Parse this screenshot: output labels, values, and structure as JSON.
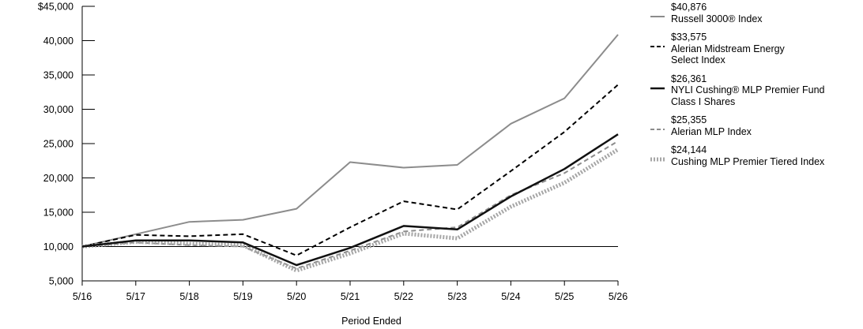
{
  "chart_data": {
    "type": "line",
    "xlabel": "Period Ended",
    "ylabel": "",
    "ylim": [
      5000,
      45000
    ],
    "y_ticks": [
      5000,
      10000,
      15000,
      20000,
      25000,
      30000,
      35000,
      40000,
      45000
    ],
    "y_tick_labels": [
      "5,000",
      "10,000",
      "15,000",
      "20,000",
      "25,000",
      "30,000",
      "35,000",
      "40,000",
      "$45,000"
    ],
    "categories": [
      "5/16",
      "5/17",
      "5/18",
      "5/19",
      "5/20",
      "5/21",
      "5/22",
      "5/23",
      "5/24",
      "5/25",
      "5/26"
    ],
    "reference_line": 10000,
    "legend_position": "right",
    "series": [
      {
        "name": "Russell 3000® Index",
        "final_label": "$40,876",
        "color": "#8c8c8c",
        "style": "solid-thin",
        "values": [
          10000,
          11800,
          13600,
          13900,
          15500,
          22300,
          21500,
          21900,
          27900,
          31600,
          40876
        ]
      },
      {
        "name": "Alerian Midstream Energy\nSelect Index",
        "final_label": "$33,575",
        "color": "#000000",
        "style": "dashed",
        "values": [
          10000,
          11700,
          11500,
          11800,
          8700,
          12800,
          16600,
          15400,
          21000,
          26700,
          33575
        ]
      },
      {
        "name": "NYLI Cushing® MLP Premier Fund\nClass I Shares",
        "final_label": "$26,361",
        "color": "#111111",
        "style": "solid-thick",
        "values": [
          10000,
          10900,
          10900,
          10600,
          7300,
          9800,
          13000,
          12500,
          17300,
          21300,
          26361
        ]
      },
      {
        "name": "Alerian MLP Index",
        "final_label": "$25,355",
        "color": "#8c8c8c",
        "style": "dashed",
        "values": [
          10000,
          10600,
          10200,
          10000,
          6800,
          9400,
          12200,
          12800,
          17500,
          20700,
          25355
        ]
      },
      {
        "name": "Cushing MLP Premier Tiered Index",
        "final_label": "$24,144",
        "color": "#a6a6a6",
        "style": "dotted-thick",
        "values": [
          10000,
          10700,
          10400,
          10200,
          6500,
          9000,
          11900,
          11200,
          15800,
          19300,
          24144
        ]
      }
    ]
  }
}
